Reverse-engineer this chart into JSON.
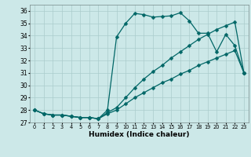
{
  "xlabel": "Humidex (Indice chaleur)",
  "xlim": [
    -0.5,
    23.5
  ],
  "ylim": [
    27,
    36.5
  ],
  "yticks": [
    27,
    28,
    29,
    30,
    31,
    32,
    33,
    34,
    35,
    36
  ],
  "xticks": [
    0,
    1,
    2,
    3,
    4,
    5,
    6,
    7,
    8,
    9,
    10,
    11,
    12,
    13,
    14,
    15,
    16,
    17,
    18,
    19,
    20,
    21,
    22,
    23
  ],
  "bg_color": "#cce8e8",
  "grid_color": "#aacccc",
  "line_color": "#006666",
  "line1_y": [
    28.0,
    27.7,
    27.6,
    27.6,
    27.5,
    27.4,
    27.4,
    27.3,
    28.0,
    33.9,
    35.0,
    35.8,
    35.7,
    35.5,
    35.55,
    35.6,
    35.85,
    35.2,
    34.2,
    34.2,
    32.7,
    34.1,
    33.2,
    31.0
  ],
  "line2_y": [
    28.0,
    27.7,
    27.6,
    27.6,
    27.5,
    27.4,
    27.4,
    27.3,
    27.8,
    28.2,
    29.0,
    29.8,
    30.5,
    31.1,
    31.6,
    32.2,
    32.7,
    33.2,
    33.7,
    34.1,
    34.5,
    34.8,
    35.1,
    31.0
  ],
  "line3_y": [
    28.0,
    27.7,
    27.6,
    27.6,
    27.5,
    27.4,
    27.4,
    27.3,
    27.7,
    28.0,
    28.5,
    29.0,
    29.4,
    29.8,
    30.2,
    30.5,
    30.9,
    31.2,
    31.6,
    31.9,
    32.2,
    32.5,
    32.8,
    31.0
  ]
}
